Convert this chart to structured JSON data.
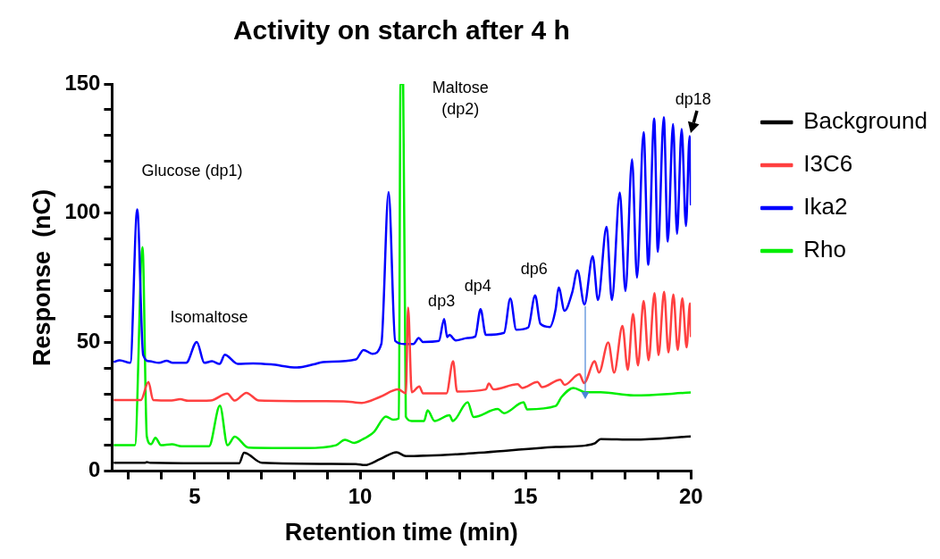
{
  "chart_data": {
    "type": "line",
    "title": "Activity on starch after 4 h",
    "xlabel": "Retention time (min)",
    "ylabel": "Response  (nC)",
    "xlim": [
      2.5,
      20
    ],
    "xticks": [
      {
        "value": 3,
        "label": null
      },
      {
        "value": 4,
        "label": null
      },
      5,
      {
        "value": 6,
        "label": null
      },
      {
        "value": 7,
        "label": null
      },
      {
        "value": 8,
        "label": null
      },
      {
        "value": 9,
        "label": null
      },
      10,
      {
        "value": 11,
        "label": null
      },
      {
        "value": 12,
        "label": null
      },
      {
        "value": 13,
        "label": null
      },
      {
        "value": 14,
        "label": null
      },
      15,
      {
        "value": 16,
        "label": null
      },
      {
        "value": 17,
        "label": null
      },
      {
        "value": 18,
        "label": null
      },
      {
        "value": 19,
        "label": null
      },
      20
    ],
    "ylim": [
      0,
      150
    ],
    "yticks": [
      0,
      {
        "value": 10,
        "label": null
      },
      {
        "value": 20,
        "label": null
      },
      {
        "value": 30,
        "label": null
      },
      {
        "value": 40,
        "label": null
      },
      50,
      {
        "value": 60,
        "label": null
      },
      {
        "value": 70,
        "label": null
      },
      {
        "value": 80,
        "label": null
      },
      {
        "value": 90,
        "label": null
      },
      100,
      {
        "value": 110,
        "label": null
      },
      {
        "value": 120,
        "label": null
      },
      {
        "value": 130,
        "label": null
      },
      {
        "value": 140,
        "label": null
      },
      150
    ],
    "grid": false,
    "legend": "right",
    "marker": "none",
    "line_style": "solid",
    "series": [
      {
        "name": "Background",
        "color": "#000000",
        "x": [
          2.55,
          3.5,
          3.55,
          3.65,
          6.34,
          6.49,
          7.03,
          9.87,
          10.14,
          10.6,
          11.1,
          11.38,
          13.16,
          15.91,
          16.82,
          17.1,
          17.27,
          18.27,
          20
        ],
        "values": [
          3.3,
          3.3,
          3.6,
          3.3,
          3.1,
          7.2,
          3.3,
          2.8,
          2.4,
          4.7,
          7.4,
          5.9,
          6.8,
          9.4,
          10,
          10.9,
          12.5,
          12.3,
          13.5
        ]
      },
      {
        "name": "I3C6",
        "color": "#ff4040",
        "x": [
          2.55,
          3.37,
          3.6,
          3.74,
          4.3,
          4.56,
          4.8,
          5.48,
          5.98,
          6.21,
          6.56,
          6.94,
          9.5,
          10.05,
          10.6,
          11.15,
          11.38,
          11.45,
          11.56,
          11.79,
          11.9,
          12.61,
          12.81,
          12.93,
          13.8,
          13.89,
          14.03,
          14.76,
          14.9,
          15.36,
          15.5,
          16.05,
          16.18,
          16.63,
          16.77,
          17.09,
          17.22,
          17.5,
          17.68,
          17.93,
          18.09,
          18.25,
          18.4,
          18.57,
          18.72,
          18.9,
          19.02,
          19.19,
          19.32,
          19.47,
          19.6,
          19.74,
          19.87,
          19.97,
          20
        ],
        "values": [
          27.6,
          27.6,
          34.6,
          27.6,
          27.4,
          27.9,
          27.3,
          27.4,
          30.1,
          27.4,
          30.4,
          27.4,
          27.1,
          26.5,
          28.8,
          31.7,
          30.2,
          63.4,
          30.6,
          32.9,
          30.2,
          30.2,
          42.6,
          30.9,
          31.7,
          34,
          31.7,
          33.7,
          32.3,
          34.6,
          32.6,
          35.5,
          33.5,
          37.6,
          34.2,
          42.6,
          38.2,
          49.9,
          38.2,
          56.3,
          39.3,
          61,
          41,
          66,
          43,
          69,
          45,
          69.5,
          46,
          68.5,
          47,
          67,
          48,
          65,
          52
        ]
      },
      {
        "name": "Ika2",
        "color": "#0000ff",
        "x": [
          2.55,
          2.73,
          3.05,
          3.26,
          3.44,
          3.64,
          3.92,
          4.15,
          4.33,
          4.74,
          5.06,
          5.29,
          5.52,
          5.75,
          5.91,
          6.3,
          6.76,
          7.31,
          8.09,
          8.59,
          8.87,
          9.87,
          10.1,
          10.37,
          10.64,
          10.86,
          11.06,
          11.33,
          11.61,
          11.77,
          11.9,
          12.38,
          12.54,
          12.63,
          12.7,
          12.89,
          13.25,
          13.48,
          13.64,
          13.8,
          14.35,
          14.54,
          14.72,
          15.08,
          15.29,
          15.45,
          15.73,
          15.91,
          16.0,
          16.18,
          16.41,
          16.57,
          16.78,
          17.03,
          17.19,
          17.45,
          17.61,
          17.85,
          18.02,
          18.22,
          18.37,
          18.57,
          18.71,
          18.89,
          19.0,
          19.18,
          19.3,
          19.46,
          19.58,
          19.72,
          19.85,
          19.96,
          20
        ],
        "values": [
          42.3,
          43,
          42,
          101.4,
          45,
          42.6,
          42,
          42.8,
          42,
          42,
          50.1,
          42,
          42.6,
          41.6,
          45.1,
          41.6,
          41.8,
          41.4,
          40.2,
          41.4,
          42.3,
          43.3,
          47,
          45.5,
          49.3,
          108.2,
          50.5,
          49.3,
          49.3,
          51.6,
          50.1,
          50.5,
          59,
          52,
          52.8,
          50.7,
          51.6,
          52.2,
          62.8,
          52.8,
          53.6,
          66.9,
          54.8,
          55.7,
          68.1,
          57.1,
          55.9,
          62.8,
          71.2,
          62.2,
          69.2,
          77.8,
          64.6,
          83.3,
          66.3,
          94.7,
          66.3,
          107.9,
          69.8,
          120.8,
          75,
          131.3,
          80,
          136.6,
          85,
          137.1,
          89,
          134.4,
          92,
          132.5,
          95,
          129.8,
          103
        ]
      },
      {
        "name": "Rho",
        "color": "#00ee00",
        "x": [
          2.55,
          3.19,
          3.42,
          3.55,
          3.68,
          3.81,
          3.98,
          4.31,
          4.6,
          5.43,
          5.76,
          5.99,
          6.21,
          6.62,
          8.36,
          9.27,
          9.54,
          9.82,
          10.05,
          10.42,
          10.78,
          11.0,
          11.17,
          11.22,
          11.3,
          11.38,
          11.56,
          11.93,
          12.04,
          12.25,
          12.7,
          12.8,
          13.25,
          13.43,
          14.16,
          14.35,
          14.94,
          15.05,
          15.91,
          16.09,
          16.45,
          16.82,
          17.27,
          18.27,
          20
        ],
        "values": [
          10.1,
          10.1,
          86.8,
          13.5,
          10.5,
          13,
          10.1,
          10.5,
          9.7,
          9.7,
          25.4,
          10.1,
          13.4,
          9.2,
          9,
          10.1,
          12.2,
          11,
          12.2,
          15.3,
          21.2,
          20,
          20.5,
          150,
          150,
          21.2,
          19.5,
          19.5,
          23.6,
          19.5,
          21.7,
          19.5,
          26.7,
          21,
          24.1,
          22.5,
          26.7,
          24,
          25.3,
          28.8,
          32.3,
          30.6,
          30.6,
          29.4,
          30.5
        ]
      }
    ],
    "annotations": [
      "Glucose (dp1)",
      "Isomaltose",
      "Maltose\n(dp2)",
      "dp3",
      "dp4",
      "dp6",
      {
        "text": "dp18",
        "x": 19.96,
        "y": 129.8
      }
    ]
  }
}
